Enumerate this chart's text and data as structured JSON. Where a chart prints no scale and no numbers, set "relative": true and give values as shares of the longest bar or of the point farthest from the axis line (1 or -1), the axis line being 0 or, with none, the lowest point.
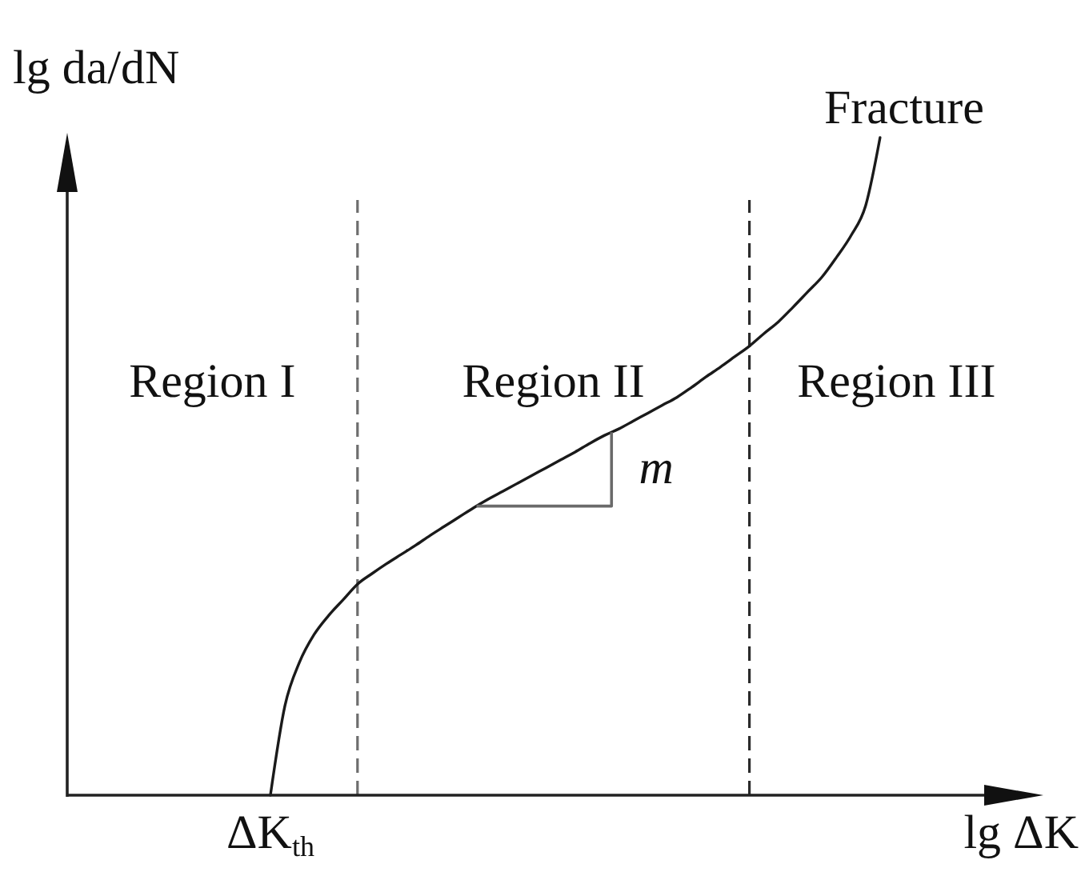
{
  "chart_data": {
    "type": "line",
    "relative": true,
    "xlabel": "lg ΔK",
    "ylabel": "lg da/dN",
    "categories": [
      null,
      null,
      null,
      null,
      null,
      null,
      null,
      null,
      null,
      null,
      null,
      null,
      null,
      null,
      null,
      null,
      null,
      null,
      null,
      null,
      null,
      null,
      null,
      null,
      null,
      null,
      null,
      null,
      null,
      null,
      null,
      null,
      null,
      null,
      null,
      null,
      null,
      null,
      null,
      null,
      null,
      null,
      null,
      null,
      null,
      null,
      null,
      null,
      null,
      null,
      null,
      null,
      null,
      null,
      null,
      null,
      null,
      null,
      null,
      null,
      null,
      null,
      null,
      null,
      null,
      null,
      null,
      null
    ],
    "values": [
      null,
      null,
      null,
      null,
      null,
      null,
      null,
      null,
      null,
      null,
      null,
      null,
      null,
      null,
      0,
      0.136,
      0.202,
      0.244,
      0.273,
      0.297,
      0.321,
      0.337,
      0.352,
      0.366,
      0.38,
      0.395,
      0.409,
      0.423,
      0.437,
      0.45,
      0.462,
      0.474,
      0.486,
      0.498,
      0.51,
      0.522,
      0.535,
      0.547,
      0.557,
      0.569,
      0.581,
      0.593,
      0.605,
      0.62,
      0.636,
      0.651,
      0.667,
      0.683,
      0.702,
      0.72,
      0.742,
      0.765,
      0.788,
      0.818,
      0.851,
      0.896,
      1,
      null,
      null,
      null,
      null,
      null,
      null,
      null,
      null,
      null,
      null,
      null
    ],
    "color": "#1a1a1a",
    "annotations": [
      "Region I",
      "Region II",
      "Region III",
      "Fracture",
      "m",
      {
        "text": "ΔK$_{th}$",
        "y": 0
      }
    ]
  }
}
